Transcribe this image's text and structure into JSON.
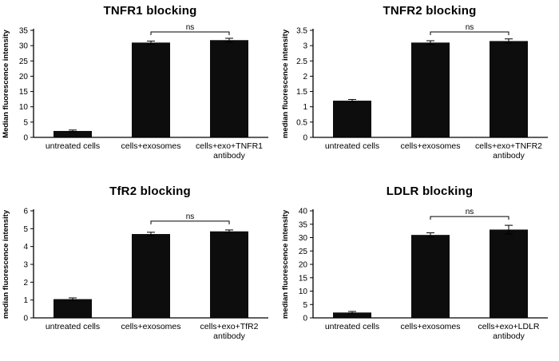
{
  "page": {
    "background": "#ffffff",
    "text_color": "#000000"
  },
  "chart_data": [
    {
      "type": "bar",
      "title": "TNFR1 blocking",
      "xlabel": "",
      "ylabel": "Median fluorescence intensity",
      "ylim": [
        0,
        35
      ],
      "yticks": [
        0,
        5,
        10,
        15,
        20,
        25,
        30,
        35
      ],
      "categories": [
        "untreated cells",
        "cells+exosomes",
        "cells+exo+TNFR1\nantibody"
      ],
      "values": [
        2.1,
        31.0,
        31.8
      ],
      "errors": [
        0.3,
        0.5,
        0.6
      ],
      "significance": {
        "label": "ns",
        "between": [
          1,
          2
        ]
      },
      "bar_color": "#0d0d0d",
      "grid": false,
      "legend": false
    },
    {
      "type": "bar",
      "title": "TNFR2 blocking",
      "xlabel": "",
      "ylabel": "median fluorescence intensity",
      "ylim": [
        0,
        3.5
      ],
      "yticks": [
        0,
        0.5,
        1,
        1.5,
        2,
        2.5,
        3,
        3.5
      ],
      "categories": [
        "untreated cells",
        "cells+exosomes",
        "cells+exo+TNFR2\nantibody"
      ],
      "values": [
        1.2,
        3.1,
        3.15
      ],
      "errors": [
        0.04,
        0.06,
        0.07
      ],
      "significance": {
        "label": "ns",
        "between": [
          1,
          2
        ]
      },
      "bar_color": "#0d0d0d",
      "grid": false,
      "legend": false
    },
    {
      "type": "bar",
      "title": "TfR2 blocking",
      "xlabel": "",
      "ylabel": "median fluorescence intensity",
      "ylim": [
        0,
        6
      ],
      "yticks": [
        0,
        1,
        2,
        3,
        4,
        5,
        6
      ],
      "categories": [
        "untreated cells",
        "cells+exosomes",
        "cells+exo+TfR2\nantibody"
      ],
      "values": [
        1.05,
        4.7,
        4.85
      ],
      "errors": [
        0.07,
        0.1,
        0.08
      ],
      "significance": {
        "label": "ns",
        "between": [
          1,
          2
        ]
      },
      "bar_color": "#0d0d0d",
      "grid": false,
      "legend": false
    },
    {
      "type": "bar",
      "title": "LDLR blocking",
      "xlabel": "",
      "ylabel": "median fluorescence intensity",
      "ylim": [
        0,
        40
      ],
      "yticks": [
        0,
        5,
        10,
        15,
        20,
        25,
        30,
        35,
        40
      ],
      "categories": [
        "untreated cells",
        "cells+exosomes",
        "cells+exo+LDLR\nantibody"
      ],
      "values": [
        2.0,
        31.0,
        33.0
      ],
      "errors": [
        0.4,
        0.8,
        1.6
      ],
      "significance": {
        "label": "ns",
        "between": [
          1,
          2
        ]
      },
      "bar_color": "#0d0d0d",
      "grid": false,
      "legend": false
    }
  ]
}
